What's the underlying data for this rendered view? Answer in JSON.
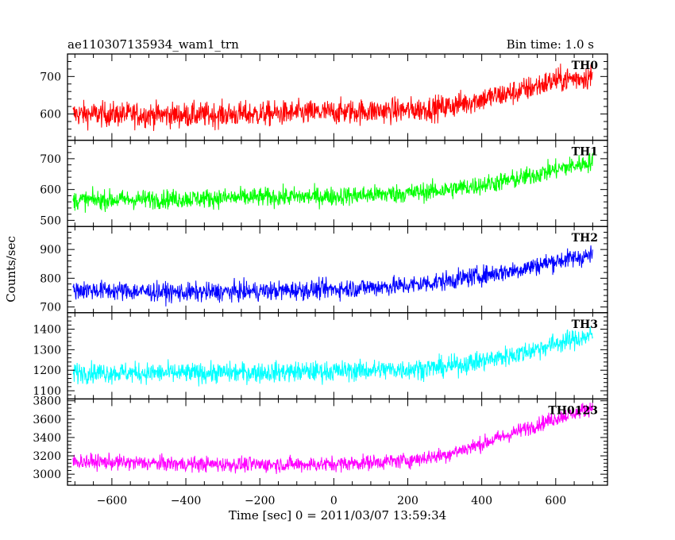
{
  "chart_data": {
    "type": "line",
    "title": "ae110307135934_wam1_trn",
    "bin_time_label": "Bin time: 1.0 s",
    "xlabel": "Time [sec] 0 = 2011/03/07 13:59:34",
    "ylabel": "Counts/sec",
    "xlim": [
      -720,
      740
    ],
    "xticks": [
      -600,
      -400,
      -200,
      0,
      200,
      400,
      600
    ],
    "x_range_data": [
      -705,
      700
    ],
    "grid": false,
    "panels": [
      {
        "name": "TH0",
        "color": "#ff0000",
        "ylim": [
          530,
          760
        ],
        "yticks": [
          600,
          700
        ],
        "anchors": [
          [
            -700,
            600
          ],
          [
            -400,
            597
          ],
          [
            -200,
            600
          ],
          [
            0,
            605
          ],
          [
            200,
            610
          ],
          [
            300,
            618
          ],
          [
            400,
            640
          ],
          [
            500,
            660
          ],
          [
            600,
            690
          ],
          [
            700,
            700
          ]
        ],
        "noise": 30
      },
      {
        "name": "TH1",
        "color": "#00ff00",
        "ylim": [
          480,
          760
        ],
        "yticks": [
          500,
          600,
          700
        ],
        "anchors": [
          [
            -700,
            565
          ],
          [
            -400,
            570
          ],
          [
            -200,
            575
          ],
          [
            0,
            578
          ],
          [
            200,
            588
          ],
          [
            300,
            598
          ],
          [
            400,
            615
          ],
          [
            500,
            635
          ],
          [
            600,
            665
          ],
          [
            700,
            690
          ]
        ],
        "noise": 28
      },
      {
        "name": "TH2",
        "color": "#0000ff",
        "ylim": [
          680,
          980
        ],
        "yticks": [
          700,
          800,
          900
        ],
        "anchors": [
          [
            -700,
            760
          ],
          [
            -400,
            750
          ],
          [
            -200,
            755
          ],
          [
            0,
            762
          ],
          [
            200,
            775
          ],
          [
            300,
            790
          ],
          [
            400,
            810
          ],
          [
            500,
            830
          ],
          [
            600,
            860
          ],
          [
            700,
            880
          ]
        ],
        "noise": 30
      },
      {
        "name": "TH3",
        "color": "#00ffff",
        "ylim": [
          1060,
          1480
        ],
        "yticks": [
          1100,
          1200,
          1300,
          1400
        ],
        "anchors": [
          [
            -700,
            1190
          ],
          [
            -400,
            1185
          ],
          [
            -200,
            1190
          ],
          [
            0,
            1195
          ],
          [
            200,
            1205
          ],
          [
            300,
            1215
          ],
          [
            400,
            1245
          ],
          [
            500,
            1280
          ],
          [
            600,
            1330
          ],
          [
            700,
            1370
          ]
        ],
        "noise": 45
      },
      {
        "name": "TH0123",
        "color": "#ff00ff",
        "ylim": [
          2880,
          3820
        ],
        "yticks": [
          3000,
          3200,
          3400,
          3600,
          3800
        ],
        "anchors": [
          [
            -700,
            3140
          ],
          [
            -400,
            3110
          ],
          [
            -200,
            3105
          ],
          [
            0,
            3110
          ],
          [
            200,
            3150
          ],
          [
            300,
            3210
          ],
          [
            400,
            3330
          ],
          [
            500,
            3470
          ],
          [
            600,
            3610
          ],
          [
            700,
            3730
          ]
        ],
        "noise": 75
      }
    ]
  }
}
